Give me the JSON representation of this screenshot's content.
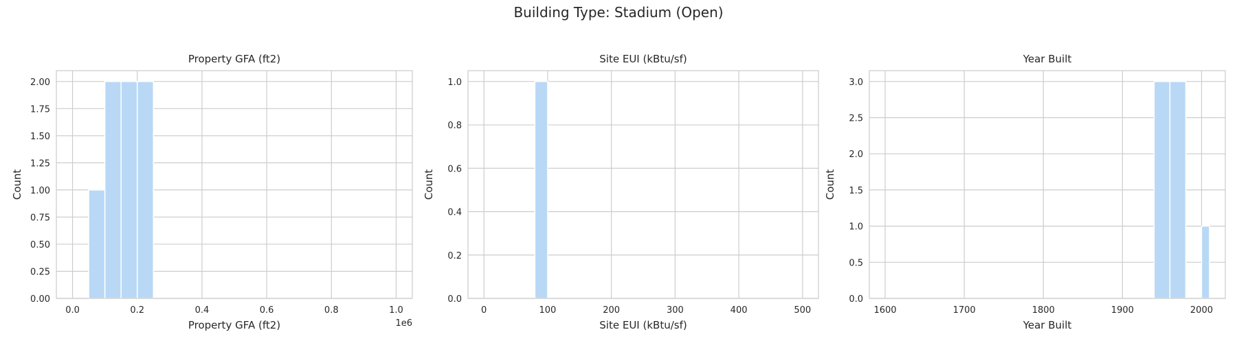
{
  "figure": {
    "title": "Building Type: Stadium (Open)"
  },
  "chart_data": [
    {
      "type": "bar",
      "title": "Property GFA (ft2)",
      "xlabel": "Property GFA (ft2)",
      "ylabel": "Count",
      "xlim": [
        -0.05,
        1.05
      ],
      "ylim": [
        0,
        2.1
      ],
      "xticks": [
        0.0,
        0.2,
        0.4,
        0.6,
        0.8,
        1.0
      ],
      "xtick_labels": [
        "0.0",
        "0.2",
        "0.4",
        "0.6",
        "0.8",
        "1.0"
      ],
      "yticks": [
        0,
        0.25,
        0.5,
        0.75,
        1.0,
        1.25,
        1.5,
        1.75,
        2.0
      ],
      "ytick_labels": [
        "0.00",
        "0.25",
        "0.50",
        "0.75",
        "1.00",
        "1.25",
        "1.50",
        "1.75",
        "2.00"
      ],
      "offset_text": "1e6",
      "bins": [
        {
          "x0": 0.05,
          "x1": 0.1,
          "count": 1
        },
        {
          "x0": 0.1,
          "x1": 0.15,
          "count": 2
        },
        {
          "x0": 0.15,
          "x1": 0.2,
          "count": 2
        },
        {
          "x0": 0.2,
          "x1": 0.25,
          "count": 2
        }
      ]
    },
    {
      "type": "bar",
      "title": "Site EUI (kBtu/sf)",
      "xlabel": "Site EUI (kBtu/sf)",
      "ylabel": "Count",
      "xlim": [
        -25,
        525
      ],
      "ylim": [
        0,
        1.05
      ],
      "xticks": [
        0,
        100,
        200,
        300,
        400,
        500
      ],
      "xtick_labels": [
        "0",
        "100",
        "200",
        "300",
        "400",
        "500"
      ],
      "yticks": [
        0,
        0.2,
        0.4,
        0.6,
        0.8,
        1.0
      ],
      "ytick_labels": [
        "0.0",
        "0.2",
        "0.4",
        "0.6",
        "0.8",
        "1.0"
      ],
      "bins": [
        {
          "x0": 80,
          "x1": 100,
          "count": 1
        }
      ]
    },
    {
      "type": "bar",
      "title": "Year Built",
      "xlabel": "Year Built",
      "ylabel": "Count",
      "xlim": [
        1580,
        2030
      ],
      "ylim": [
        0,
        3.15
      ],
      "xticks": [
        1600,
        1700,
        1800,
        1900,
        2000
      ],
      "xtick_labels": [
        "1600",
        "1700",
        "1800",
        "1900",
        "2000"
      ],
      "yticks": [
        0,
        0.5,
        1.0,
        1.5,
        2.0,
        2.5,
        3.0
      ],
      "ytick_labels": [
        "0.0",
        "0.5",
        "1.0",
        "1.5",
        "2.0",
        "2.5",
        "3.0"
      ],
      "bins": [
        {
          "x0": 1940,
          "x1": 1960,
          "count": 3
        },
        {
          "x0": 1960,
          "x1": 1980,
          "count": 3
        },
        {
          "x0": 2000,
          "x1": 2010,
          "count": 1
        }
      ]
    }
  ]
}
